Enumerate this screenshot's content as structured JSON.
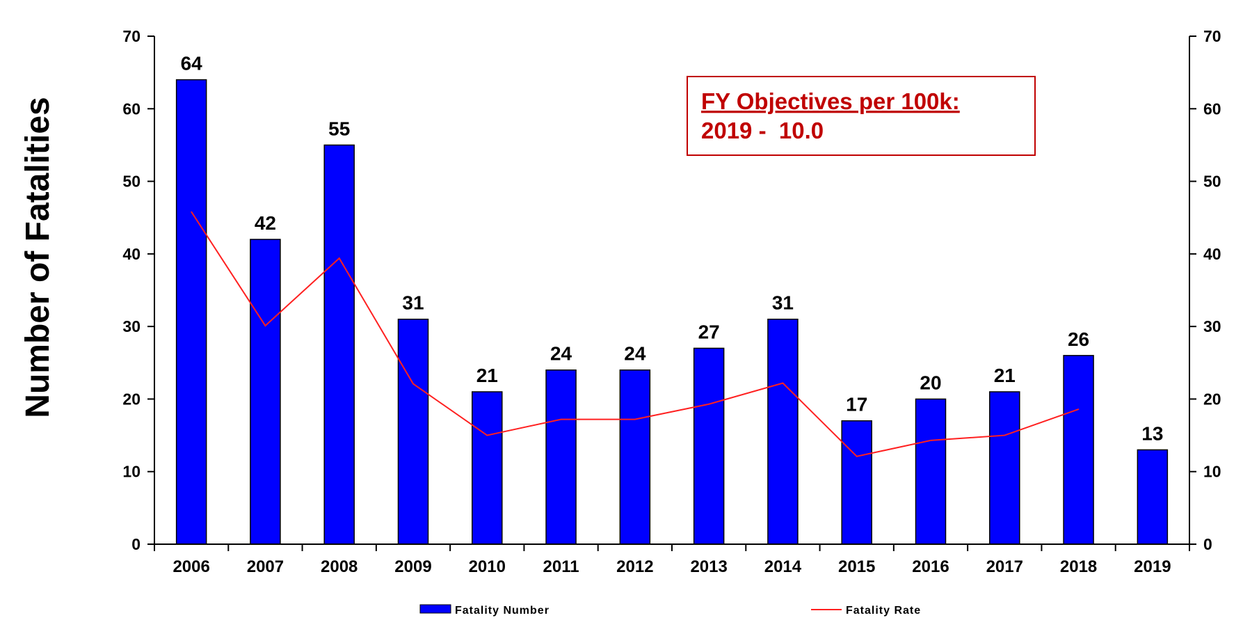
{
  "chart_data": {
    "type": "bar",
    "title": "",
    "ylabel": "Number of Fatalities",
    "xlabel": "",
    "ylim": [
      0,
      70
    ],
    "y2lim": [
      0,
      70
    ],
    "yticks": [
      0,
      10,
      20,
      30,
      40,
      50,
      60,
      70
    ],
    "categories": [
      "2006",
      "2007",
      "2008",
      "2009",
      "2010",
      "2011",
      "2012",
      "2013",
      "2014",
      "2015",
      "2016",
      "2017",
      "2018",
      "2019"
    ],
    "series": [
      {
        "name": "Fatality Number",
        "type": "bar",
        "color": "#0000ff",
        "values": [
          64,
          42,
          55,
          31,
          21,
          24,
          24,
          27,
          31,
          17,
          20,
          21,
          26,
          13
        ]
      },
      {
        "name": "Fatality Rate",
        "type": "line",
        "color": "#ff2020",
        "values": [
          45.8,
          30.1,
          39.4,
          22.1,
          15.0,
          17.2,
          17.2,
          19.3,
          22.2,
          12.1,
          14.3,
          15.0,
          18.6,
          null
        ]
      }
    ],
    "legend": "bottom",
    "grid": false,
    "annotation": {
      "title": "FY Objectives per 100k:",
      "line": "2019 -  10.0",
      "color": "#c00000"
    }
  }
}
